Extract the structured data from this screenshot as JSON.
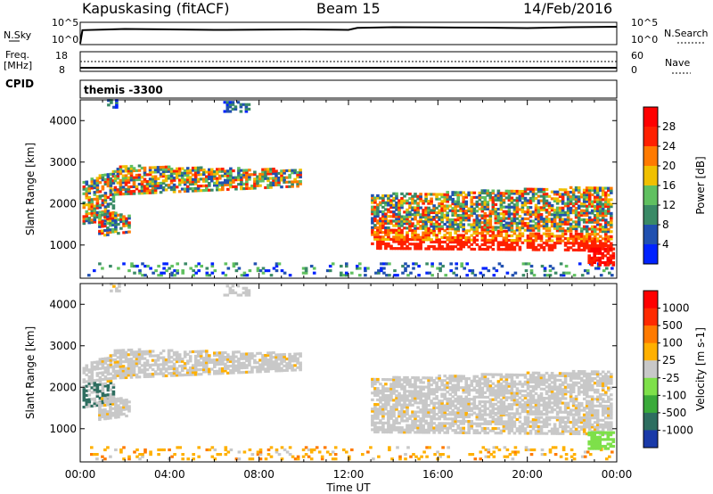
{
  "header": {
    "station": "Kapuskasing (fitACF)",
    "beam": "Beam 15",
    "date": "14/Feb/2016"
  },
  "chart_data": [
    {
      "type": "line",
      "name": "noise-panel",
      "left_label": "N.Sky",
      "right_label": "N.Search",
      "left_ticks": [
        "10^5",
        "10^0"
      ],
      "right_ticks": [
        "10^5",
        "10^0"
      ],
      "series": [
        {
          "name": "N.Sky",
          "x": [
            0,
            0.1,
            2,
            4,
            6,
            8,
            10,
            12,
            12.4,
            14,
            16,
            18,
            20,
            22,
            24
          ],
          "y": [
            0.05,
            0.65,
            0.7,
            0.68,
            0.66,
            0.67,
            0.68,
            0.66,
            0.75,
            0.78,
            0.77,
            0.76,
            0.74,
            0.78,
            0.8
          ]
        }
      ]
    },
    {
      "type": "line",
      "name": "freq-nave-panel",
      "left_label": "Freq.",
      "left_unit": "[MHz]",
      "right_label": "Nave",
      "left_ticks": [
        "18",
        "8"
      ],
      "right_ticks": [
        "60",
        "0"
      ]
    },
    {
      "type": "heatmap",
      "name": "power-panel",
      "cpid_label": "CPID",
      "cpid_value": "themis -3300",
      "ylabel": "Slant Range [km]",
      "yticks": [
        "1000",
        "2000",
        "3000",
        "4000"
      ],
      "ylim": [
        200,
        4500
      ],
      "colorbar_label": "Power [dB]",
      "colorbar_ticks": [
        "4",
        "8",
        "12",
        "16",
        "20",
        "24",
        "28"
      ],
      "colorbar_colors": [
        "#0022ff",
        "#2050b0",
        "#3a8a66",
        "#60c060",
        "#f0c000",
        "#ff7a00",
        "#ff2000",
        "#ff0000"
      ]
    },
    {
      "type": "heatmap",
      "name": "velocity-panel",
      "ylabel": "Slant Range [km]",
      "yticks": [
        "1000",
        "2000",
        "3000",
        "4000"
      ],
      "ylim": [
        200,
        4500
      ],
      "colorbar_label": "Velocity [m s-1]",
      "colorbar_ticks": [
        "1000",
        "500",
        "100",
        "25",
        "-25",
        "-100",
        "-500",
        "-1000"
      ],
      "colorbar_colors": [
        "#1a3aa8",
        "#2e6e60",
        "#3aaa3a",
        "#7ee04a",
        "#c8c8c8",
        "#ffb000",
        "#ff7a00",
        "#ff2a00",
        "#ff0000"
      ]
    }
  ],
  "xaxis": {
    "label": "Time UT",
    "ticks": [
      "00:00",
      "04:00",
      "08:00",
      "12:00",
      "16:00",
      "20:00",
      "00:00"
    ]
  }
}
